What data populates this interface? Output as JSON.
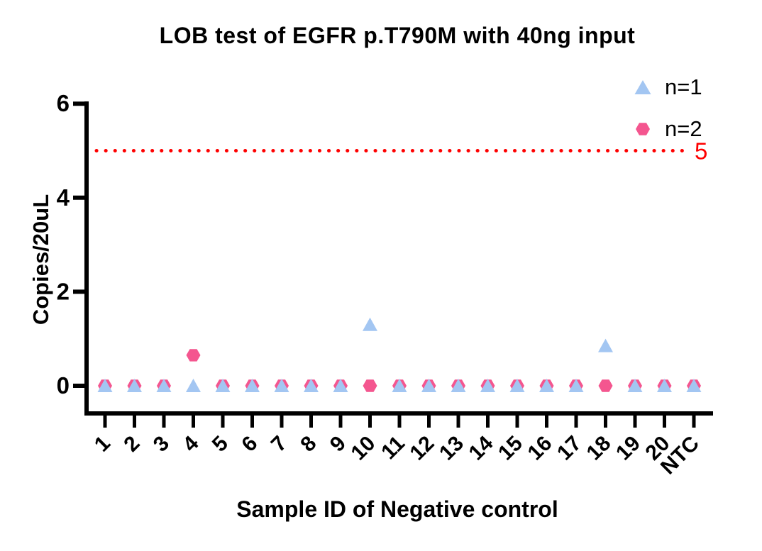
{
  "chart_data": {
    "type": "scatter",
    "title": "LOB test of EGFR p.T790M with 40ng input",
    "xlabel": "Sample ID of Negative control",
    "ylabel": "Copies/20uL",
    "categories": [
      "1",
      "2",
      "3",
      "4",
      "5",
      "6",
      "7",
      "8",
      "9",
      "10",
      "11",
      "12",
      "13",
      "14",
      "15",
      "16",
      "17",
      "18",
      "19",
      "20",
      "NTC"
    ],
    "yticks": [
      0,
      2,
      4,
      6
    ],
    "ylim": [
      0,
      6
    ],
    "grid": false,
    "legend_position": "top-right",
    "axis_color": "#000000",
    "series": [
      {
        "name": "n=1",
        "marker": "triangle",
        "color": "#A3C6F2",
        "values": [
          0,
          0,
          0,
          0,
          0,
          0,
          0,
          0,
          0,
          1.3,
          0,
          0,
          0,
          0,
          0,
          0,
          0,
          0.85,
          0,
          0,
          0
        ]
      },
      {
        "name": "n=2",
        "marker": "hexagon",
        "color": "#F4568F",
        "values": [
          0,
          0,
          0,
          0.65,
          0,
          0,
          0,
          0,
          0,
          0,
          0,
          0,
          0,
          0,
          0,
          0,
          0,
          0,
          0,
          0,
          0
        ]
      }
    ],
    "threshold": {
      "value": 5,
      "label": "5",
      "color": "#FE0000",
      "style": "dotted"
    }
  }
}
